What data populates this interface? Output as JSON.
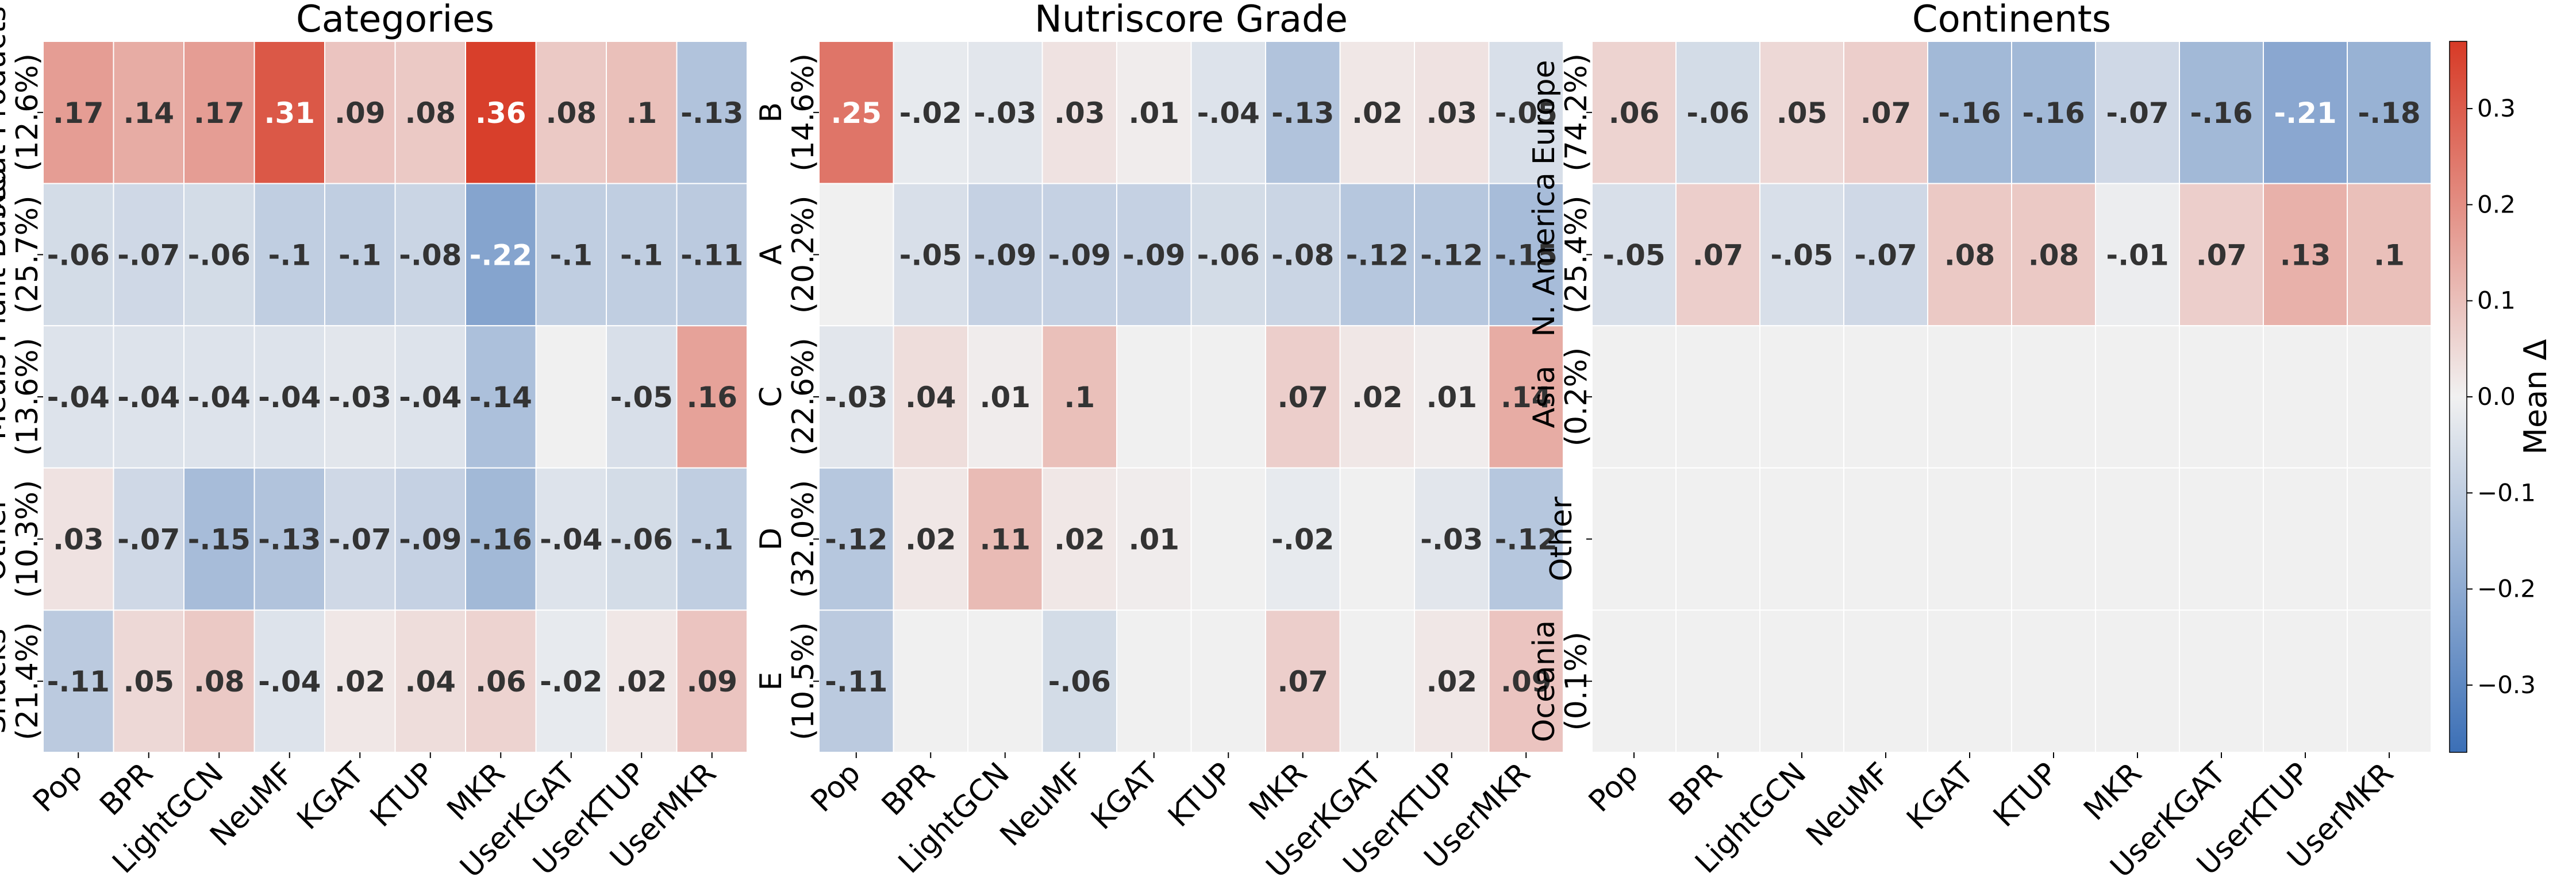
{
  "chart_data": [
    {
      "type": "heatmap",
      "title": "Categories",
      "columns": [
        "Pop",
        "BPR",
        "LightGCN",
        "NeuMF",
        "KGAT",
        "KTUP",
        "MKR",
        "UserKGAT",
        "UserKTUP",
        "UserMKR"
      ],
      "rows": [
        {
          "name": "Meat Products",
          "share": "(12.6%)"
        },
        {
          "name": "Plant Based",
          "share": "(25.7%)"
        },
        {
          "name": "Meals",
          "share": "(13.6%)"
        },
        {
          "name": "Other",
          "share": "(10.3%)"
        },
        {
          "name": "Snacks",
          "share": "(21.4%)"
        }
      ],
      "values": [
        [
          0.17,
          0.14,
          0.17,
          0.31,
          0.09,
          0.08,
          0.36,
          0.08,
          0.1,
          -0.13
        ],
        [
          -0.06,
          -0.07,
          -0.06,
          -0.1,
          -0.1,
          -0.08,
          -0.22,
          -0.1,
          -0.1,
          -0.11
        ],
        [
          -0.04,
          -0.04,
          -0.04,
          -0.04,
          -0.03,
          -0.04,
          -0.14,
          null,
          -0.05,
          0.16
        ],
        [
          0.03,
          -0.07,
          -0.15,
          -0.13,
          -0.07,
          -0.09,
          -0.16,
          -0.04,
          -0.06,
          -0.1
        ],
        [
          -0.11,
          0.05,
          0.08,
          -0.04,
          0.02,
          0.04,
          0.06,
          -0.02,
          0.02,
          0.09
        ]
      ],
      "labels": [
        [
          ".17",
          ".14",
          ".17",
          ".31",
          ".09",
          ".08",
          ".36",
          ".08",
          ".1",
          "-.13"
        ],
        [
          "-.06",
          "-.07",
          "-.06",
          "-.1",
          "-.1",
          "-.08",
          "-.22",
          "-.1",
          "-.1",
          "-.11"
        ],
        [
          "-.04",
          "-.04",
          "-.04",
          "-.04",
          "-.03",
          "-.04",
          "-.14",
          "",
          "-.05",
          ".16"
        ],
        [
          ".03",
          "-.07",
          "-.15",
          "-.13",
          "-.07",
          "-.09",
          "-.16",
          "-.04",
          "-.06",
          "-.1"
        ],
        [
          "-.11",
          ".05",
          ".08",
          "-.04",
          ".02",
          ".04",
          ".06",
          "-.02",
          ".02",
          ".09"
        ]
      ]
    },
    {
      "type": "heatmap",
      "title": "Nutriscore Grade",
      "columns": [
        "Pop",
        "BPR",
        "LightGCN",
        "NeuMF",
        "KGAT",
        "KTUP",
        "MKR",
        "UserKGAT",
        "UserKTUP",
        "UserMKR"
      ],
      "rows": [
        {
          "name": "B",
          "share": "(14.6%)"
        },
        {
          "name": "A",
          "share": "(20.2%)"
        },
        {
          "name": "C",
          "share": "(22.6%)"
        },
        {
          "name": "D",
          "share": "(32.0%)"
        },
        {
          "name": "E",
          "share": "(10.5%)"
        }
      ],
      "values": [
        [
          0.25,
          -0.02,
          -0.03,
          0.03,
          0.01,
          -0.04,
          -0.13,
          0.02,
          0.03,
          -0.05
        ],
        [
          null,
          -0.05,
          -0.09,
          -0.09,
          -0.09,
          -0.06,
          -0.08,
          -0.12,
          -0.12,
          -0.15
        ],
        [
          -0.03,
          0.04,
          0.01,
          0.1,
          null,
          null,
          0.07,
          0.02,
          0.01,
          0.14
        ],
        [
          -0.12,
          0.02,
          0.11,
          0.02,
          0.01,
          null,
          -0.02,
          null,
          -0.03,
          -0.12
        ],
        [
          -0.11,
          null,
          null,
          -0.06,
          null,
          null,
          0.07,
          null,
          0.02,
          0.09
        ]
      ],
      "labels": [
        [
          ".25",
          "-.02",
          "-.03",
          ".03",
          ".01",
          "-.04",
          "-.13",
          ".02",
          ".03",
          "-.05"
        ],
        [
          "",
          "-.05",
          "-.09",
          "-.09",
          "-.09",
          "-.06",
          "-.08",
          "-.12",
          "-.12",
          "-.15"
        ],
        [
          "-.03",
          ".04",
          ".01",
          ".1",
          "",
          "",
          ".07",
          ".02",
          ".01",
          ".14"
        ],
        [
          "-.12",
          ".02",
          ".11",
          ".02",
          ".01",
          "",
          "-.02",
          "",
          "-.03",
          "-.12"
        ],
        [
          "-.11",
          "",
          "",
          "-.06",
          "",
          "",
          ".07",
          "",
          ".02",
          ".09"
        ]
      ]
    },
    {
      "type": "heatmap",
      "title": "Continents",
      "columns": [
        "Pop",
        "BPR",
        "LightGCN",
        "NeuMF",
        "KGAT",
        "KTUP",
        "MKR",
        "UserKGAT",
        "UserKTUP",
        "UserMKR"
      ],
      "rows": [
        {
          "name": "Europe",
          "share": "(74.2%)"
        },
        {
          "name": "N. America",
          "share": "(25.4%)"
        },
        {
          "name": "Asia",
          "share": "(0.2%)"
        },
        {
          "name": "Other",
          "share": ""
        },
        {
          "name": "Oceania",
          "share": "(0.1%)"
        }
      ],
      "values": [
        [
          0.06,
          -0.06,
          0.05,
          0.07,
          -0.16,
          -0.16,
          -0.07,
          -0.16,
          -0.21,
          -0.18
        ],
        [
          -0.05,
          0.07,
          -0.05,
          -0.07,
          0.08,
          0.08,
          -0.01,
          0.07,
          0.13,
          0.1
        ],
        [
          null,
          null,
          null,
          null,
          null,
          null,
          null,
          null,
          null,
          null
        ],
        [
          null,
          null,
          null,
          null,
          null,
          null,
          null,
          null,
          null,
          null
        ],
        [
          null,
          null,
          null,
          null,
          null,
          null,
          null,
          null,
          null,
          null
        ]
      ],
      "labels": [
        [
          ".06",
          "-.06",
          ".05",
          ".07",
          "-.16",
          "-.16",
          "-.07",
          "-.16",
          "-.21",
          "-.18"
        ],
        [
          "-.05",
          ".07",
          "-.05",
          "-.07",
          ".08",
          ".08",
          "-.01",
          ".07",
          ".13",
          ".1"
        ],
        [
          "",
          "",
          "",
          "",
          "",
          "",
          "",
          "",
          "",
          ""
        ],
        [
          "",
          "",
          "",
          "",
          "",
          "",
          "",
          "",
          "",
          ""
        ],
        [
          "",
          "",
          "",
          "",
          "",
          "",
          "",
          "",
          "",
          ""
        ]
      ]
    }
  ],
  "colorbar": {
    "label": "Mean Δ",
    "vmin": -0.37,
    "vmax": 0.37,
    "ticks": [
      -0.3,
      -0.2,
      -0.1,
      0.0,
      0.1,
      0.2,
      0.3
    ],
    "tick_labels": [
      "−0.3",
      "−0.2",
      "−0.1",
      "0.0",
      "0.1",
      "0.2",
      "0.3"
    ],
    "colormap": {
      "low": "#3b6fb6",
      "mid": "#f1f1f1",
      "high": "#d73a26"
    },
    "empty_cell_color": "#f0f0f0"
  }
}
